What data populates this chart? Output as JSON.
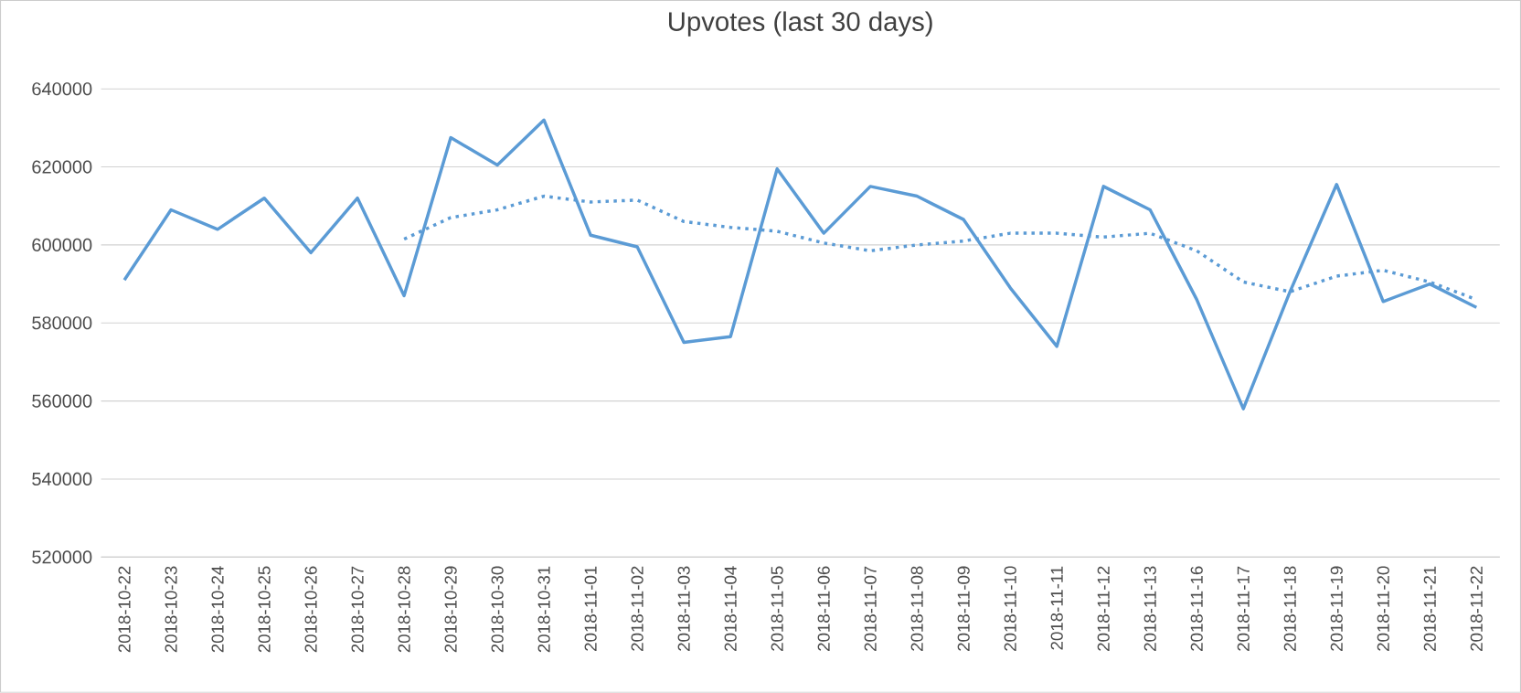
{
  "chart_data": {
    "type": "line",
    "title": "Upvotes (last 30 days)",
    "categories": [
      "2018-10-22",
      "2018-10-23",
      "2018-10-24",
      "2018-10-25",
      "2018-10-26",
      "2018-10-27",
      "2018-10-28",
      "2018-10-29",
      "2018-10-30",
      "2018-10-31",
      "2018-11-01",
      "2018-11-02",
      "2018-11-03",
      "2018-11-04",
      "2018-11-05",
      "2018-11-06",
      "2018-11-07",
      "2018-11-08",
      "2018-11-09",
      "2018-11-10",
      "2018-11-11",
      "2018-11-12",
      "2018-11-13",
      "2018-11-16",
      "2018-11-17",
      "2018-11-18",
      "2018-11-19",
      "2018-11-20",
      "2018-11-21",
      "2018-11-22"
    ],
    "series": [
      {
        "color": "#5b9bd5",
        "line_style": "solid",
        "values": [
          591000,
          609000,
          604000,
          612000,
          598000,
          612000,
          587000,
          627500,
          620500,
          632000,
          602500,
          599500,
          575000,
          576500,
          619500,
          603000,
          615000,
          612500,
          606500,
          589000,
          574000,
          615000,
          609000,
          586000,
          558000,
          588000,
          615500,
          585500,
          590000,
          584000
        ]
      },
      {
        "color": "#5b9bd5",
        "line_style": "dotted",
        "values": [
          null,
          null,
          null,
          null,
          null,
          null,
          601500,
          607000,
          609000,
          612500,
          611000,
          611500,
          606000,
          604500,
          603500,
          600500,
          598500,
          600000,
          601000,
          603000,
          603000,
          602000,
          603000,
          598500,
          590500,
          588000,
          592000,
          593500,
          590500,
          586000
        ]
      }
    ],
    "ylim": [
      520000,
      640000
    ],
    "yticks": [
      520000,
      540000,
      560000,
      580000,
      600000,
      620000,
      640000
    ],
    "grid": "y",
    "legend": false,
    "marker": "none"
  }
}
